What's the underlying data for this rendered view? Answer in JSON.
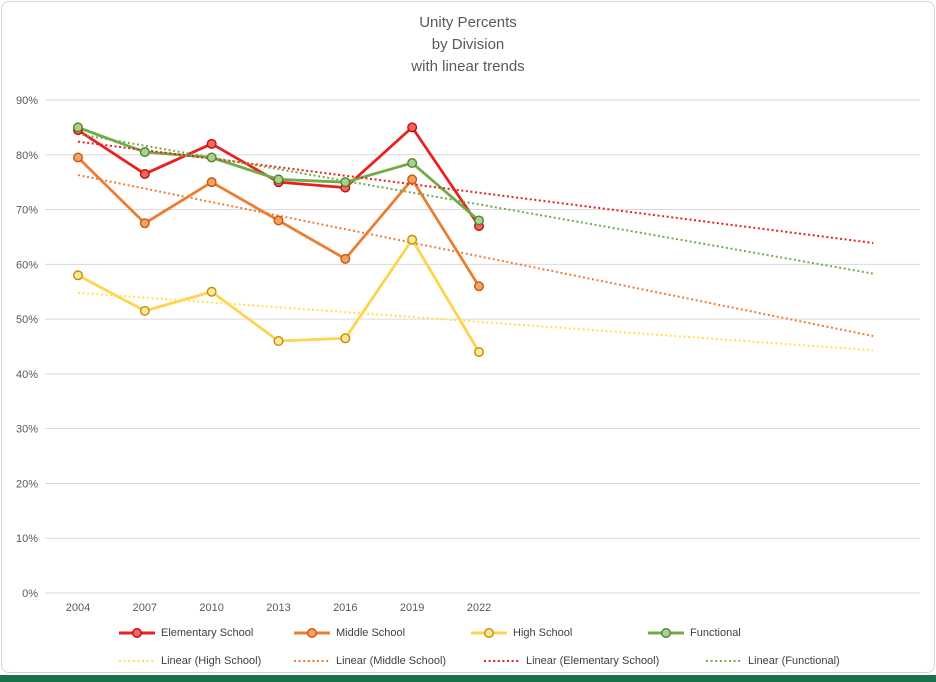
{
  "frame": {
    "background": "#ffffff",
    "border_color": "#d4d4d4",
    "bottom_bar_color": "#1a7148"
  },
  "chart_data": {
    "type": "line",
    "title_lines": [
      "Unity Percents",
      "by Division",
      "with linear trends"
    ],
    "title_color": "#595959",
    "categories": [
      "2004",
      "2007",
      "2010",
      "2013",
      "2016",
      "2019",
      "2022"
    ],
    "y_tick_labels": [
      "0%",
      "10%",
      "20%",
      "30%",
      "40%",
      "50%",
      "60%",
      "70%",
      "80%",
      "90%"
    ],
    "ylim": [
      0,
      90
    ],
    "grid": true,
    "gridline_color": "#d9d9d9",
    "axis_label_color": "#595959",
    "legend_position": "bottom",
    "series": [
      {
        "name": "Elementary School",
        "color": "#e9211e",
        "marker_fill": "#f2665f",
        "marker_stroke": "#c00d0d",
        "values": [
          84.5,
          76.5,
          82,
          75,
          74,
          85,
          67
        ]
      },
      {
        "name": "Middle School",
        "color": "#ed7d31",
        "marker_fill": "#f3a35f",
        "marker_stroke": "#c55a11",
        "values": [
          79.5,
          67.5,
          75,
          68,
          61,
          75.5,
          56
        ]
      },
      {
        "name": "High School",
        "color": "#ffd34d",
        "marker_fill": "#ffe699",
        "marker_stroke": "#bf9000",
        "values": [
          58,
          51.5,
          55,
          46,
          46.5,
          64.5,
          44
        ]
      },
      {
        "name": "Functional",
        "color": "#70ad47",
        "marker_fill": "#a9d18e",
        "marker_stroke": "#548235",
        "values": [
          85,
          80.5,
          79.5,
          75.5,
          75,
          78.5,
          68
        ]
      }
    ],
    "trendlines": [
      {
        "name": "Linear (High School)",
        "color": "#ffe14d",
        "start_value": 54.8,
        "end_value": 44.3
      },
      {
        "name": "Linear (Middle School)",
        "color": "#ed7d31",
        "start_value": 76.3,
        "end_value": 46.9
      },
      {
        "name": "Linear (Elementary School)",
        "color": "#e9211e",
        "start_value": 82.4,
        "end_value": 63.9
      },
      {
        "name": "Linear (Functional)",
        "color": "#70ad47",
        "start_value": 83.8,
        "end_value": 58.3
      }
    ],
    "trend_forecast_end_index": 11.9
  }
}
